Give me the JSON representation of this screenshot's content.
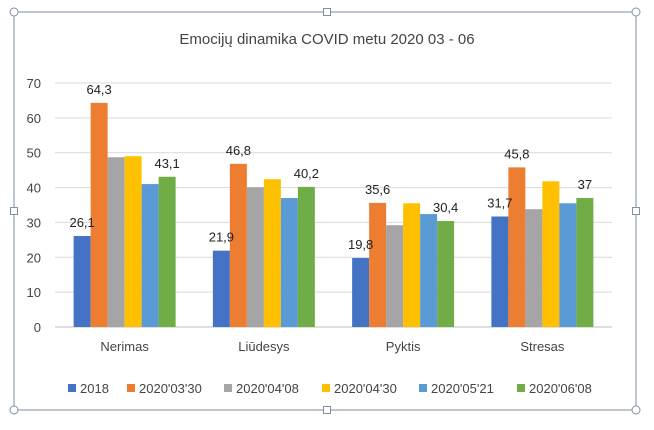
{
  "chart_data": {
    "type": "bar",
    "title": "Emocijų dinamika COVID metu 2020 03 - 06",
    "categories": [
      "Nerimas",
      "Liūdesys",
      "Pyktis",
      "Stresas"
    ],
    "ylim": [
      0,
      70
    ],
    "yticks": [
      0,
      10,
      20,
      30,
      40,
      50,
      60,
      70
    ],
    "grid": true,
    "legend_position": "bottom",
    "series": [
      {
        "name": "2018",
        "color": "#4472C4",
        "values": [
          26.1,
          21.9,
          19.8,
          31.7
        ],
        "labels": [
          "26,1",
          "21,9",
          "19,8",
          "31,7"
        ]
      },
      {
        "name": "2020'03'30",
        "color": "#ED7D31",
        "values": [
          64.3,
          46.8,
          35.6,
          45.8
        ],
        "labels": [
          "64,3",
          "46,8",
          "35,6",
          "45,8"
        ]
      },
      {
        "name": "2020'04'08",
        "color": "#A5A5A5",
        "values": [
          48.7,
          40.1,
          29.2,
          33.8
        ],
        "labels": [
          null,
          null,
          null,
          null
        ]
      },
      {
        "name": "2020'04'30",
        "color": "#FFC000",
        "values": [
          49.0,
          42.4,
          35.5,
          41.8
        ],
        "labels": [
          null,
          null,
          null,
          null
        ]
      },
      {
        "name": "2020'05'21",
        "color": "#5B9BD5",
        "values": [
          41.0,
          37.0,
          32.4,
          35.5
        ],
        "labels": [
          null,
          null,
          null,
          null
        ]
      },
      {
        "name": "2020'06'08",
        "color": "#70AD47",
        "values": [
          43.1,
          40.2,
          30.4,
          37
        ],
        "labels": [
          "43,1",
          "40,2",
          "30,4",
          "37"
        ]
      }
    ]
  }
}
